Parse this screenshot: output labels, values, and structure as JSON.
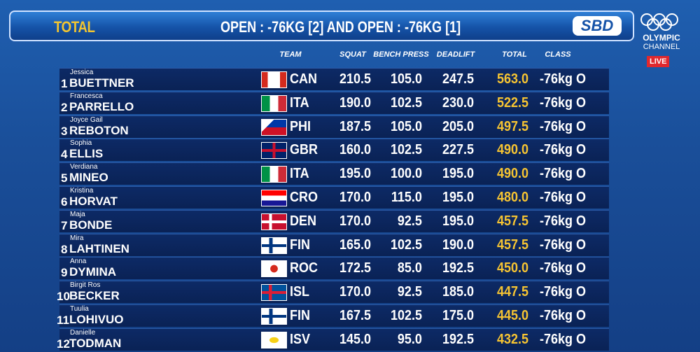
{
  "header": {
    "title": "TOTAL",
    "event": "OPEN : -76KG [2] AND OPEN : -76KG [1]",
    "sponsor": "SBD",
    "channel": [
      "OLYMPIC",
      "CHANNEL"
    ],
    "live": "LIVE"
  },
  "table": {
    "columns": [
      "TEAM",
      "SQUAT",
      "BENCH PRESS",
      "DEADLIFT",
      "TOTAL",
      "CLASS"
    ],
    "rows": [
      [
        "1",
        "Jessica",
        "BUETTNER",
        "CAN",
        "210.5",
        "105.0",
        "247.5",
        "563.0",
        "-76kg O"
      ],
      [
        "2",
        "Francesca",
        "PARRELLO",
        "ITA",
        "190.0",
        "102.5",
        "230.0",
        "522.5",
        "-76kg O"
      ],
      [
        "3",
        "Joyce Gail",
        "REBOTON",
        "PHI",
        "187.5",
        "105.0",
        "205.0",
        "497.5",
        "-76kg O"
      ],
      [
        "4",
        "Sophia",
        "ELLIS",
        "GBR",
        "160.0",
        "102.5",
        "227.5",
        "490.0",
        "-76kg O"
      ],
      [
        "5",
        "Verdiana",
        "MINEO",
        "ITA",
        "195.0",
        "100.0",
        "195.0",
        "490.0",
        "-76kg O"
      ],
      [
        "6",
        "Kristina",
        "HORVAT",
        "CRO",
        "170.0",
        "115.0",
        "195.0",
        "480.0",
        "-76kg O"
      ],
      [
        "7",
        "Maja",
        "BONDE",
        "DEN",
        "170.0",
        "92.5",
        "195.0",
        "457.5",
        "-76kg O"
      ],
      [
        "8",
        "Mira",
        "LAHTINEN",
        "FIN",
        "165.0",
        "102.5",
        "190.0",
        "457.5",
        "-76kg O"
      ],
      [
        "9",
        "Anna",
        "DYMINA",
        "ROC",
        "172.5",
        "85.0",
        "192.5",
        "450.0",
        "-76kg O"
      ],
      [
        "10",
        "Birgit Ros",
        "BECKER",
        "ISL",
        "170.0",
        "92.5",
        "185.0",
        "447.5",
        "-76kg O"
      ],
      [
        "11",
        "Tuulia",
        "LOHIVUO",
        "FIN",
        "167.5",
        "102.5",
        "175.0",
        "445.0",
        "-76kg O"
      ],
      [
        "12",
        "Danielle",
        "TODMAN",
        "ISV",
        "145.0",
        "95.0",
        "192.5",
        "432.5",
        "-76kg O"
      ]
    ]
  }
}
